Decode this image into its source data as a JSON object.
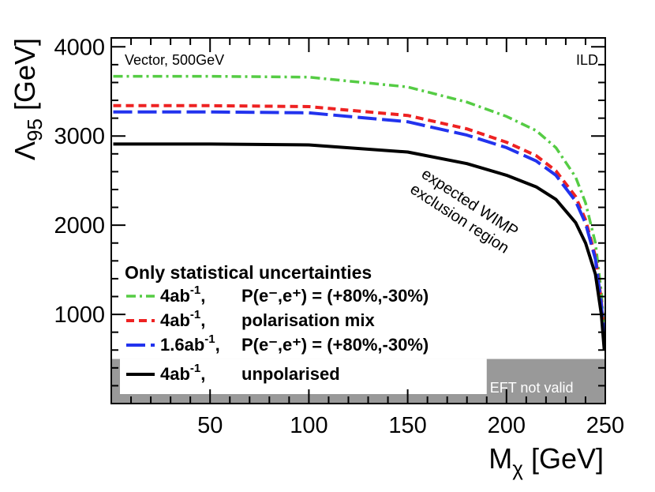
{
  "chart_data": {
    "type": "line",
    "x_axis": {
      "label_main": "M",
      "label_sub": "χ",
      "label_unit": " [GeV]",
      "range": [
        0,
        250
      ],
      "ticks": [
        50,
        100,
        150,
        200,
        250
      ],
      "tick_labels": [
        "50",
        "100",
        "150",
        "200",
        "250"
      ]
    },
    "y_axis": {
      "label_main": "Λ",
      "label_sub": "95",
      "label_unit": " [GeV]",
      "range": [
        0,
        4100
      ],
      "ticks": [
        1000,
        2000,
        3000,
        4000
      ],
      "tick_labels": [
        "1000",
        "2000",
        "3000",
        "4000"
      ]
    },
    "top_left_label": "Vector, 500GeV",
    "top_right_label": "ILD",
    "annotation_lines": [
      "expected WIMP",
      "exclusion region"
    ],
    "eft_region": {
      "label": "EFT not valid",
      "y_max": 500,
      "label_x_start": 190
    },
    "legend": {
      "header": "Only statistical uncertainties"
    },
    "series": [
      {
        "name": "4ab-1, P(e-,e+) = (+80%,-30%)",
        "legend_lumi": "4ab",
        "legend_sup": "-1",
        "legend_desc": "P(e⁻,e⁺) = (+80%,-30%)",
        "color": "#55cc44",
        "style": "dashdot",
        "lambda0": 3670,
        "x": [
          1,
          50,
          100,
          150,
          180,
          200,
          215,
          225,
          235,
          240,
          245,
          248,
          249.5
        ],
        "y": [
          3670,
          3670,
          3660,
          3550,
          3380,
          3220,
          3060,
          2870,
          2540,
          2250,
          1800,
          1250,
          800
        ]
      },
      {
        "name": "4ab-1, polarisation mix",
        "legend_lumi": "4ab",
        "legend_sup": "-1",
        "legend_desc": "polarisation mix",
        "color": "#ee2222",
        "style": "dashed-short",
        "lambda0": 3340,
        "x": [
          1,
          50,
          100,
          150,
          180,
          200,
          215,
          225,
          235,
          240,
          245,
          248,
          249.5
        ],
        "y": [
          3340,
          3340,
          3330,
          3230,
          3080,
          2930,
          2780,
          2610,
          2320,
          2060,
          1650,
          1150,
          720
        ]
      },
      {
        "name": "1.6ab-1, P(e-,e+) = (+80%,-30%)",
        "legend_lumi": "1.6ab",
        "legend_sup": "-1",
        "legend_desc": "P(e⁻,e⁺) = (+80%,-30%)",
        "color": "#2233ee",
        "style": "dashed-long",
        "lambda0": 3270,
        "x": [
          1,
          50,
          100,
          150,
          180,
          200,
          215,
          225,
          235,
          240,
          245,
          248,
          249.5
        ],
        "y": [
          3270,
          3270,
          3260,
          3160,
          3010,
          2870,
          2720,
          2560,
          2270,
          2020,
          1620,
          1120,
          700
        ]
      },
      {
        "name": "4ab-1, unpolarised",
        "legend_lumi": "4ab",
        "legend_sup": "-1",
        "legend_desc": "unpolarised",
        "color": "#000000",
        "style": "solid",
        "lambda0": 2910,
        "x": [
          1,
          50,
          100,
          150,
          180,
          200,
          215,
          225,
          235,
          240,
          245,
          248,
          249.5
        ],
        "y": [
          2910,
          2910,
          2900,
          2820,
          2690,
          2560,
          2430,
          2290,
          2030,
          1800,
          1450,
          1000,
          600
        ]
      }
    ]
  }
}
